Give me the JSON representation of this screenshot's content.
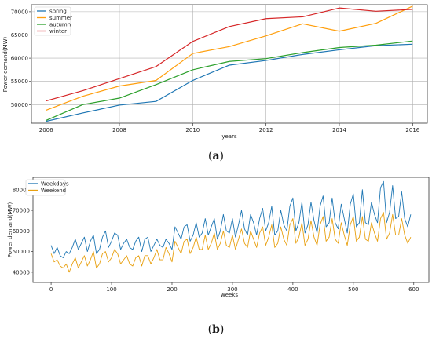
{
  "captions": {
    "a": "a",
    "b": "b"
  },
  "chart_data": [
    {
      "type": "line",
      "panel": "a",
      "xlabel": "years",
      "ylabel": "Power demand(MW)",
      "xlim": [
        2005.6,
        2016.4
      ],
      "ylim": [
        46000,
        71500
      ],
      "xticks": [
        2006,
        2008,
        2010,
        2012,
        2014,
        2016
      ],
      "yticks": [
        50000,
        55000,
        60000,
        65000,
        70000
      ],
      "grid": true,
      "legend": "top-left",
      "x": [
        2006,
        2007,
        2008,
        2009,
        2010,
        2011,
        2012,
        2013,
        2014,
        2015,
        2016
      ],
      "series": [
        {
          "name": "spring",
          "color": "#1f77b4",
          "values": [
            46400,
            48200,
            49900,
            50700,
            55200,
            58500,
            59500,
            60800,
            61800,
            62700,
            63000
          ]
        },
        {
          "name": "summer",
          "color": "#ff9f0e",
          "values": [
            48800,
            51800,
            54000,
            55200,
            61000,
            62500,
            64800,
            67400,
            65800,
            67500,
            71200
          ]
        },
        {
          "name": "autumn",
          "color": "#2ca02c",
          "values": [
            46600,
            50000,
            51400,
            54300,
            57500,
            59300,
            59900,
            61200,
            62300,
            62800,
            63700
          ]
        },
        {
          "name": "winter",
          "color": "#d62728",
          "values": [
            50800,
            53000,
            55600,
            58200,
            63600,
            66800,
            68500,
            68900,
            70800,
            70100,
            70500
          ]
        }
      ]
    },
    {
      "type": "line",
      "panel": "b",
      "xlabel": "weeks",
      "ylabel": "Power demand(MW)",
      "xlim": [
        -30,
        625
      ],
      "ylim": [
        35000,
        86000
      ],
      "xticks": [
        0,
        100,
        200,
        300,
        400,
        500,
        600
      ],
      "yticks": [
        40000,
        50000,
        60000,
        70000,
        80000
      ],
      "grid": false,
      "legend": "top-left",
      "x_start": 0,
      "x_step": 5,
      "series": [
        {
          "name": "Weekdays",
          "color": "#1f77b4",
          "values": [
            53000,
            49000,
            52000,
            48000,
            47000,
            50000,
            49000,
            52000,
            56000,
            51000,
            54000,
            57000,
            50000,
            55000,
            58000,
            49000,
            51000,
            57000,
            60000,
            52000,
            55000,
            59000,
            58000,
            51000,
            54000,
            56000,
            52000,
            51000,
            55000,
            57000,
            50000,
            56000,
            57000,
            50000,
            53000,
            56000,
            53000,
            52000,
            56000,
            54000,
            51000,
            62000,
            59000,
            56000,
            62000,
            63000,
            55000,
            58000,
            64000,
            57000,
            59000,
            66000,
            58000,
            62000,
            66000,
            56000,
            60000,
            68000,
            60000,
            59000,
            66000,
            57000,
            63000,
            70000,
            61000,
            58000,
            68000,
            64000,
            58000,
            66000,
            71000,
            60000,
            64000,
            72000,
            58000,
            60000,
            70000,
            63000,
            60000,
            72000,
            76000,
            60000,
            64000,
            74000,
            59000,
            63000,
            74000,
            65000,
            59000,
            72000,
            77000,
            62000,
            64000,
            76000,
            64000,
            61000,
            73000,
            66000,
            59000,
            73000,
            78000,
            62000,
            64000,
            80000,
            64000,
            63000,
            74000,
            68000,
            64000,
            81000,
            84000,
            64000,
            69000,
            82000,
            66000,
            67000,
            79000,
            66000,
            62000,
            68000
          ]
        },
        {
          "name": "Weekend",
          "color": "#e8a010",
          "values": [
            49000,
            45000,
            46000,
            43000,
            42000,
            44000,
            40000,
            44000,
            47000,
            42000,
            45000,
            48000,
            43000,
            46000,
            50000,
            42000,
            44000,
            49000,
            50000,
            45000,
            47000,
            51000,
            49000,
            44000,
            46000,
            48000,
            44000,
            43000,
            47000,
            48000,
            43000,
            48000,
            48000,
            44000,
            47000,
            51000,
            46000,
            46000,
            52000,
            49000,
            45000,
            55000,
            52000,
            49000,
            55000,
            56000,
            49000,
            52000,
            57000,
            51000,
            51000,
            58000,
            51000,
            54000,
            59000,
            51000,
            54000,
            60000,
            53000,
            52000,
            58000,
            51000,
            56000,
            61000,
            54000,
            52000,
            60000,
            56000,
            52000,
            59000,
            62000,
            53000,
            57000,
            63000,
            52000,
            54000,
            62000,
            56000,
            53000,
            63000,
            66000,
            54000,
            57000,
            64000,
            53000,
            56000,
            65000,
            57000,
            53000,
            63000,
            67000,
            55000,
            57000,
            66000,
            56000,
            54000,
            64000,
            58000,
            53000,
            63000,
            67000,
            55000,
            57000,
            67000,
            56000,
            55000,
            64000,
            59000,
            55000,
            66000,
            69000,
            56000,
            59000,
            68000,
            58000,
            58000,
            66000,
            58000,
            54000,
            57000
          ]
        }
      ]
    }
  ]
}
